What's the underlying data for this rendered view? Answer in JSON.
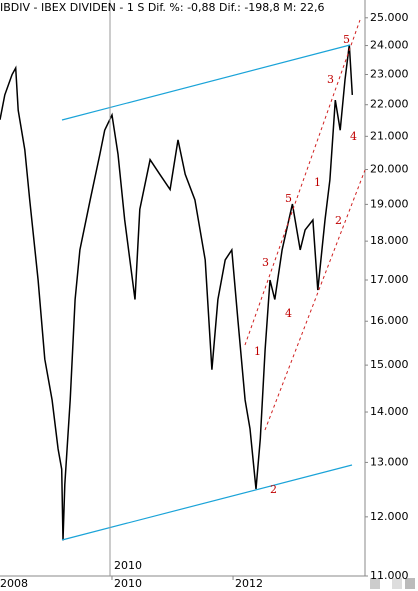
{
  "chart_data": {
    "type": "line",
    "title": "IBDIV - IBEX DIVIDEN - 1 S Dif. %: -0,88 Dif.: -198,8 M: 22,6",
    "cursor_label": "2010",
    "log_scale": true,
    "color": "#000000",
    "x": [
      2008.15,
      2008.23,
      2008.35,
      2008.41,
      2008.45,
      2008.56,
      2008.64,
      2008.78,
      2008.89,
      2009.01,
      2009.11,
      2009.17,
      2009.19,
      2009.22,
      2009.31,
      2009.39,
      2009.47,
      2009.64,
      2009.8,
      2009.88,
      2010.0,
      2010.1,
      2010.21,
      2010.38,
      2010.46,
      2010.63,
      2010.79,
      2010.96,
      2011.09,
      2011.21,
      2011.37,
      2011.54,
      2011.65,
      2011.75,
      2011.87,
      2011.98,
      2012.08,
      2012.2,
      2012.28,
      2012.38,
      2012.45,
      2012.53,
      2012.61,
      2012.69,
      2012.81,
      2012.98,
      2013.11,
      2013.19,
      2013.32,
      2013.4,
      2013.52,
      2013.6,
      2013.69,
      2013.77,
      2013.85,
      2013.92,
      2013.97
    ],
    "values": [
      21520,
      22320,
      23000,
      23220,
      21820,
      20590,
      19130,
      17000,
      15130,
      14250,
      13260,
      12870,
      11590,
      12580,
      14250,
      16520,
      17770,
      19130,
      20460,
      21190,
      21670,
      20460,
      18570,
      16520,
      18860,
      20290,
      19860,
      19420,
      20890,
      19860,
      19130,
      17510,
      14900,
      16520,
      17510,
      17770,
      16030,
      14250,
      13660,
      12500,
      13460,
      15340,
      17000,
      16520,
      17770,
      19010,
      17770,
      18300,
      18570,
      16750,
      18570,
      19700,
      22150,
      21190,
      22820,
      24030,
      22320
    ],
    "xlim": [
      2008.15,
      2014.18
    ],
    "xticks": [
      2008,
      2010,
      2012
    ],
    "ylim": [
      11000,
      25400
    ],
    "yticks": [
      {
        "value": 11000,
        "label": "11.000"
      },
      {
        "value": 12000,
        "label": "12.000"
      },
      {
        "value": 13000,
        "label": "13.000"
      },
      {
        "value": 14000,
        "label": "14.000"
      },
      {
        "value": 15000,
        "label": "15.000"
      },
      {
        "value": 16000,
        "label": "16.000"
      },
      {
        "value": 17000,
        "label": "17.000"
      },
      {
        "value": 18000,
        "label": "18.000"
      },
      {
        "value": 19000,
        "label": "19.000"
      },
      {
        "value": 20000,
        "label": "20.000"
      },
      {
        "value": 21000,
        "label": "21.000"
      },
      {
        "value": 22000,
        "label": "22.000"
      },
      {
        "value": 23000,
        "label": "23.000"
      },
      {
        "value": 24000,
        "label": "24.000"
      },
      {
        "value": 25000,
        "label": "25.000"
      }
    ],
    "annotations": [
      "5",
      "3",
      "4",
      "1",
      "2",
      "5",
      "3",
      "4",
      "1",
      "2"
    ]
  }
}
